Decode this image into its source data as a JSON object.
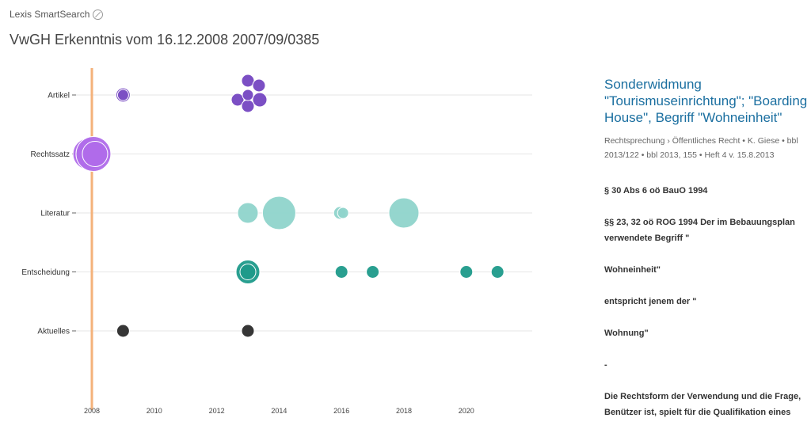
{
  "app": {
    "name": "Lexis SmartSearch",
    "icon": "compass-icon"
  },
  "page_title": "VwGH Erkenntnis vom 16.12.2008 2007/09/0385",
  "chart_data": {
    "type": "scatter",
    "rows": [
      "Artikel",
      "Rechtssatz",
      "Literatur",
      "Entscheidung",
      "Aktuelles"
    ],
    "x_ticks": [
      "2008",
      "2010",
      "2012",
      "2014",
      "2016",
      "2018",
      "2020"
    ],
    "xlim": [
      2008,
      2021.5
    ],
    "marker_year": 2008,
    "grid": true,
    "colors": {
      "Artikel": "#7b4fc4",
      "Rechtssatz": "#b06cea",
      "Literatur": "#8fd4cb",
      "Entscheidung": "#1d9a8a",
      "Aktuelles": "#2b2b2b",
      "marker": "#f4b27a"
    },
    "points": [
      {
        "row": "Artikel",
        "year": 2009.0,
        "size": 9
      },
      {
        "row": "Artikel",
        "year": 2009.0,
        "size": 7
      },
      {
        "row": "Artikel",
        "year": 2012.7,
        "size": 8
      },
      {
        "row": "Artikel",
        "year": 2012.9,
        "size": 8
      },
      {
        "row": "Artikel",
        "year": 2013.3,
        "size": 8
      },
      {
        "row": "Artikel",
        "year": 2013.35,
        "size": 9
      },
      {
        "row": "Artikel",
        "year": 2013.0,
        "size": 8
      },
      {
        "row": "Artikel",
        "year": 2012.95,
        "size": 7
      },
      {
        "row": "Rechtssatz",
        "year": 2007.9,
        "size": 20
      },
      {
        "row": "Rechtssatz",
        "year": 2008.05,
        "size": 22
      },
      {
        "row": "Rechtssatz",
        "year": 2008.1,
        "size": 16
      },
      {
        "row": "Literatur",
        "year": 2013.0,
        "size": 13
      },
      {
        "row": "Literatur",
        "year": 2014.0,
        "size": 21
      },
      {
        "row": "Literatur",
        "year": 2015.95,
        "size": 8
      },
      {
        "row": "Literatur",
        "year": 2016.05,
        "size": 7
      },
      {
        "row": "Literatur",
        "year": 2018.0,
        "size": 19
      },
      {
        "row": "Entscheidung",
        "year": 2013.0,
        "size": 15
      },
      {
        "row": "Entscheidung",
        "year": 2013.0,
        "size": 10
      },
      {
        "row": "Entscheidung",
        "year": 2016.0,
        "size": 8
      },
      {
        "row": "Entscheidung",
        "year": 2017.0,
        "size": 8
      },
      {
        "row": "Entscheidung",
        "year": 2020.0,
        "size": 8
      },
      {
        "row": "Entscheidung",
        "year": 2021.0,
        "size": 8
      },
      {
        "row": "Aktuelles",
        "year": 2009.0,
        "size": 8
      },
      {
        "row": "Aktuelles",
        "year": 2013.0,
        "size": 8
      }
    ]
  },
  "detail": {
    "title": "Sonderwidmung \"Tourismuseinrichtung\"; \"Boarding House\", Begriff \"Wohneinheit\"",
    "meta": "Rechtsprechung › Öffentliches Recht • K. Giese • bbl 2013/122 • bbl 2013, 155 •  Heft 4 v. 15.8.2013",
    "paragraphs": [
      "§ 30 Abs 6 oö BauO 1994",
      "§§ 23, 32 oö ROG 1994 Der im Bebauungsplan verwendete Begriff \"",
      "Wohneinheit\"",
      "entspricht jenem der \"",
      "Wohnung\"",
      "-",
      "Die Rechtsform der Verwendung und die Frage, Benützer ist, spielt für die Qualifikation eines"
    ]
  }
}
